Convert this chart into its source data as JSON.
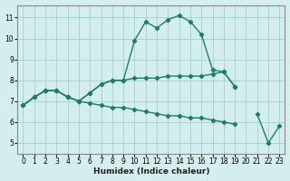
{
  "xlabel": "Humidex (Indice chaleur)",
  "bg_color": "#d4eeed",
  "grid_color": "#aad4d0",
  "line_color": "#1e7b70",
  "xlim": [
    -0.5,
    23.5
  ],
  "ylim": [
    4.5,
    11.6
  ],
  "xticks": [
    0,
    1,
    2,
    3,
    4,
    5,
    6,
    7,
    8,
    9,
    10,
    11,
    12,
    13,
    14,
    15,
    16,
    17,
    18,
    19,
    20,
    21,
    22,
    23
  ],
  "yticks": [
    5,
    6,
    7,
    8,
    9,
    10,
    11
  ],
  "lines": [
    [
      6.8,
      7.2,
      7.5,
      7.5,
      7.2,
      7.0,
      7.4,
      7.8,
      8.0,
      8.0,
      9.9,
      10.8,
      10.5,
      10.9,
      11.1,
      10.8,
      10.2,
      8.5,
      8.4,
      7.7,
      null,
      6.4,
      5.0,
      5.8
    ],
    [
      6.8,
      7.2,
      7.5,
      7.5,
      7.2,
      7.0,
      7.4,
      7.8,
      8.0,
      8.0,
      8.1,
      8.1,
      8.1,
      8.2,
      8.2,
      8.2,
      8.2,
      8.3,
      8.4,
      7.7,
      null,
      null,
      null,
      null
    ],
    [
      6.8,
      7.2,
      7.5,
      7.5,
      7.2,
      7.0,
      6.9,
      6.8,
      6.7,
      6.7,
      6.6,
      6.5,
      6.4,
      6.3,
      6.3,
      6.2,
      6.2,
      6.1,
      6.0,
      5.9,
      null,
      null,
      null,
      null
    ]
  ]
}
